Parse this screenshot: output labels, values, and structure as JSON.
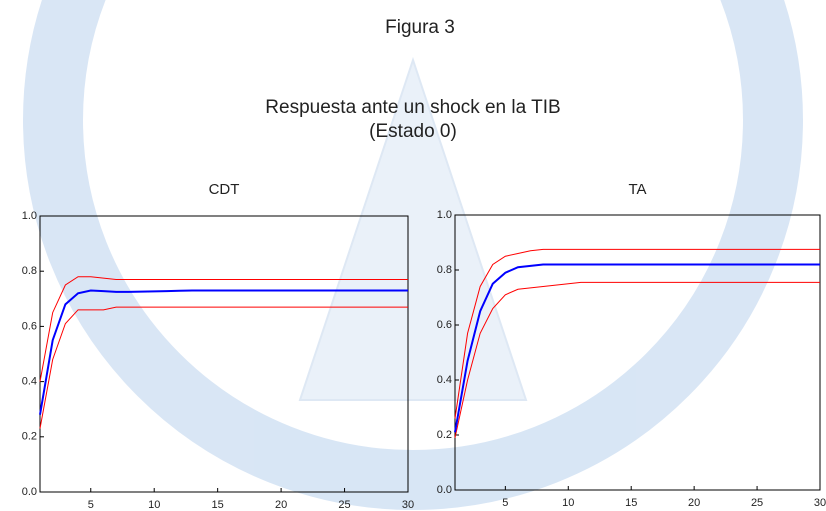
{
  "header": {
    "label": "Figura 3",
    "title": "Respuesta ante un shock en la TIB",
    "subtitle": "(Estado 0)"
  },
  "chart_data": [
    {
      "type": "line",
      "title": "CDT",
      "x": [
        1,
        2,
        3,
        4,
        5,
        6,
        7,
        8,
        9,
        10,
        11,
        12,
        13,
        14,
        15,
        16,
        17,
        18,
        19,
        20,
        21,
        22,
        23,
        24,
        25,
        26,
        27,
        28,
        29,
        30
      ],
      "series": [
        {
          "color": "#ff0000",
          "values": [
            0.4,
            0.65,
            0.75,
            0.78,
            0.78,
            0.775,
            0.77,
            0.77,
            0.77,
            0.77,
            0.77,
            0.77,
            0.77,
            0.77,
            0.77,
            0.77,
            0.77,
            0.77,
            0.77,
            0.77,
            0.77,
            0.77,
            0.77,
            0.77,
            0.77,
            0.77,
            0.77,
            0.77,
            0.77,
            0.77
          ]
        },
        {
          "color": "#ff0000",
          "values": [
            0.23,
            0.48,
            0.61,
            0.66,
            0.66,
            0.66,
            0.67,
            0.67,
            0.67,
            0.67,
            0.67,
            0.67,
            0.67,
            0.67,
            0.67,
            0.67,
            0.67,
            0.67,
            0.67,
            0.67,
            0.67,
            0.67,
            0.67,
            0.67,
            0.67,
            0.67,
            0.67,
            0.67,
            0.67,
            0.67
          ]
        },
        {
          "color": "#0000ff",
          "values": [
            0.28,
            0.55,
            0.68,
            0.72,
            0.73,
            0.728,
            0.725,
            0.725,
            0.726,
            0.727,
            0.728,
            0.729,
            0.73,
            0.73,
            0.73,
            0.73,
            0.73,
            0.73,
            0.73,
            0.73,
            0.73,
            0.73,
            0.73,
            0.73,
            0.73,
            0.73,
            0.73,
            0.73,
            0.73,
            0.73
          ]
        }
      ],
      "xlim": [
        1,
        30
      ],
      "xticks": [
        5,
        10,
        15,
        20,
        25,
        30
      ],
      "ylim": [
        0,
        1
      ],
      "yticks": [
        {
          "value": 0,
          "label": "0.0"
        },
        0.2,
        0.4,
        0.6,
        0.8,
        {
          "value": 1,
          "label": "1.0"
        }
      ]
    },
    {
      "type": "line",
      "title": "TA",
      "x": [
        1,
        2,
        3,
        4,
        5,
        6,
        7,
        8,
        9,
        10,
        11,
        12,
        13,
        14,
        15,
        16,
        17,
        18,
        19,
        20,
        21,
        22,
        23,
        24,
        25,
        26,
        27,
        28,
        29,
        30
      ],
      "series": [
        {
          "color": "#ff0000",
          "values": [
            0.26,
            0.57,
            0.74,
            0.82,
            0.85,
            0.86,
            0.87,
            0.875,
            0.875,
            0.875,
            0.875,
            0.875,
            0.875,
            0.875,
            0.875,
            0.875,
            0.875,
            0.875,
            0.875,
            0.875,
            0.875,
            0.875,
            0.875,
            0.875,
            0.875,
            0.875,
            0.875,
            0.875,
            0.875,
            0.875
          ]
        },
        {
          "color": "#ff0000",
          "values": [
            0.19,
            0.4,
            0.57,
            0.66,
            0.71,
            0.73,
            0.735,
            0.74,
            0.745,
            0.75,
            0.755,
            0.755,
            0.755,
            0.755,
            0.755,
            0.755,
            0.755,
            0.755,
            0.755,
            0.755,
            0.755,
            0.755,
            0.755,
            0.755,
            0.755,
            0.755,
            0.755,
            0.755,
            0.755,
            0.755
          ]
        },
        {
          "color": "#0000ff",
          "values": [
            0.21,
            0.47,
            0.65,
            0.75,
            0.79,
            0.81,
            0.815,
            0.82,
            0.82,
            0.82,
            0.82,
            0.82,
            0.82,
            0.82,
            0.82,
            0.82,
            0.82,
            0.82,
            0.82,
            0.82,
            0.82,
            0.82,
            0.82,
            0.82,
            0.82,
            0.82,
            0.82,
            0.82,
            0.82,
            0.82
          ]
        }
      ],
      "xlim": [
        1,
        30
      ],
      "xticks": [
        5,
        10,
        15,
        20,
        25,
        30
      ],
      "ylim": [
        0,
        1
      ],
      "yticks": [
        {
          "value": 0,
          "label": "0.0"
        },
        0.2,
        0.4,
        0.6,
        0.8,
        {
          "value": 1,
          "label": "1.0"
        }
      ]
    }
  ]
}
